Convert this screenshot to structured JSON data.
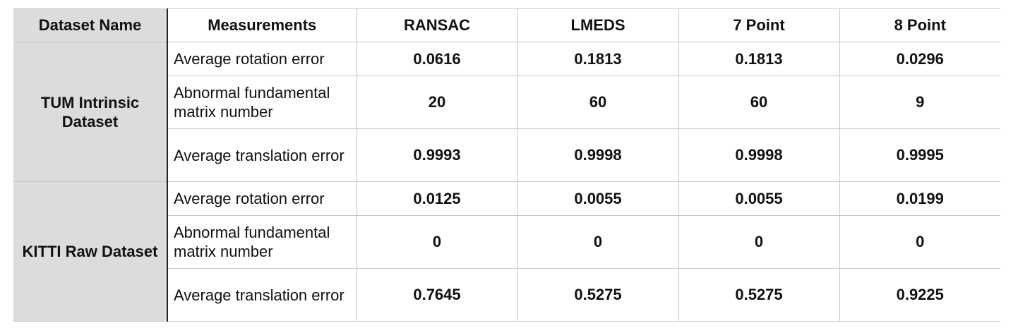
{
  "table": {
    "headers": {
      "dataset": "Dataset Name",
      "measurements": "Measurements",
      "ransac": "RANSAC",
      "lmeds": "LMEDS",
      "seven_point": "7 Point",
      "eight_point": "8 Point"
    },
    "groups": [
      {
        "dataset": "TUM Intrinsic Dataset",
        "rows": [
          {
            "measurement": "Average rotation error",
            "values": [
              "0.0616",
              "0.1813",
              "0.1813",
              "0.0296"
            ]
          },
          {
            "measurement": "Abnormal fundamental matrix number",
            "values": [
              "20",
              "60",
              "60",
              "9"
            ]
          },
          {
            "measurement": "Average translation error",
            "values": [
              "0.9993",
              "0.9998",
              "0.9998",
              "0.9995"
            ]
          }
        ]
      },
      {
        "dataset": "KITTI Raw Dataset",
        "rows": [
          {
            "measurement": "Average rotation error",
            "values": [
              "0.0125",
              "0.0055",
              "0.0055",
              "0.0199"
            ]
          },
          {
            "measurement": "Abnormal fundamental matrix number",
            "values": [
              "0",
              "0",
              "0",
              "0"
            ]
          },
          {
            "measurement": "Average translation error",
            "values": [
              "0.7645",
              "0.5275",
              "0.5275",
              "0.9225"
            ]
          }
        ]
      }
    ]
  }
}
